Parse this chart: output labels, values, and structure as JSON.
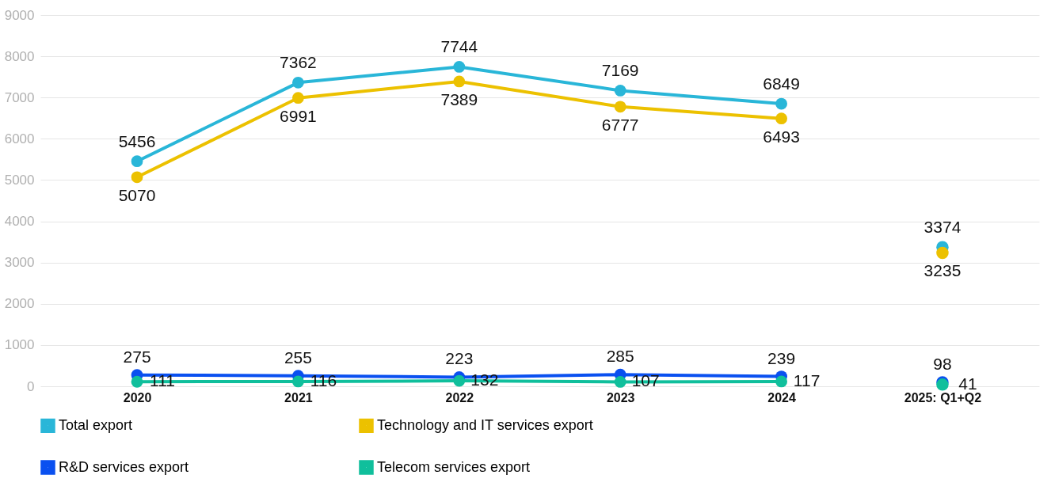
{
  "chart_data": {
    "type": "line",
    "categories": [
      "2020",
      "2021",
      "2022",
      "2023",
      "2024",
      "2025: Q1+Q2"
    ],
    "series": [
      {
        "name": "Total export",
        "color": "#29b6d8",
        "values": [
          5456,
          7362,
          7744,
          7169,
          6849,
          null
        ]
      },
      {
        "name": "Technology and IT services export",
        "color": "#ecc100",
        "values": [
          5070,
          6991,
          7389,
          6777,
          6493,
          null
        ]
      },
      {
        "name": "R&D services export",
        "color": "#0a50f0",
        "values": [
          275,
          255,
          223,
          285,
          239,
          null
        ]
      },
      {
        "name": "Telecom services export",
        "color": "#10bf9c",
        "values": [
          111,
          116,
          132,
          107,
          117,
          null
        ]
      },
      {
        "type": "scatter",
        "color": "#29b6d8",
        "x": [
          "2025: Q1+Q2"
        ],
        "values": [
          3374
        ]
      },
      {
        "type": "scatter",
        "color": "#ecc100",
        "x": [
          "2025: Q1+Q2"
        ],
        "values": [
          3235
        ]
      },
      {
        "type": "scatter",
        "color": "#0a50f0",
        "x": [
          "2025: Q1+Q2"
        ],
        "values": [
          98
        ]
      },
      {
        "type": "scatter",
        "color": "#10bf9c",
        "x": [
          "2025: Q1+Q2"
        ],
        "values": [
          41
        ]
      }
    ],
    "ylim": [
      0,
      9000
    ],
    "yticks": [
      0,
      1000,
      2000,
      3000,
      4000,
      5000,
      6000,
      7000,
      8000,
      9000
    ],
    "grid": "y",
    "legend": "bottom",
    "marker": "circle",
    "data_labels": true
  }
}
